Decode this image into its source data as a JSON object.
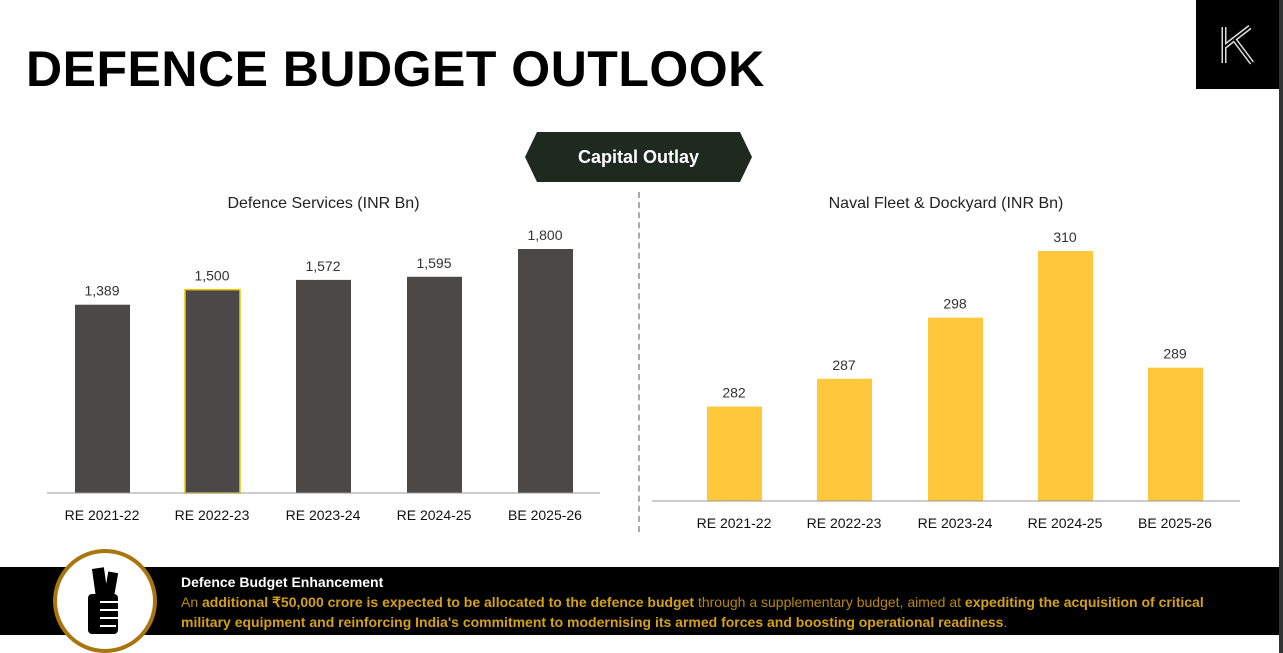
{
  "header": {
    "title": "DEFENCE BUDGET OUTLOOK",
    "section": "Capital Outlay",
    "logo_letter": "K"
  },
  "chart_data": [
    {
      "type": "bar",
      "title": "Defence Services (INR Bn)",
      "categories": [
        "RE 2021-22",
        "RE 2022-23",
        "RE 2023-24",
        "RE 2024-25",
        "BE 2025-26"
      ],
      "values": [
        1389,
        1500,
        1572,
        1595,
        1800
      ],
      "labels": [
        "1,389",
        "1,500",
        "1,572",
        "1,595",
        "1,800"
      ],
      "ylim": [
        0,
        1800
      ],
      "color": "#4a4947",
      "highlight_index": 1,
      "highlight_color": "#f5c400"
    },
    {
      "type": "bar",
      "title": "Naval Fleet & Dockyard (INR Bn)",
      "categories": [
        "RE 2021-22",
        "RE 2022-23",
        "RE 2023-24",
        "RE 2024-25",
        "BE 2025-26"
      ],
      "values": [
        282,
        287,
        298,
        310,
        289
      ],
      "labels": [
        "282",
        "287",
        "298",
        "310",
        "289"
      ],
      "ylim": [
        265,
        310
      ],
      "color": "#ffc83a"
    }
  ],
  "banner": {
    "title": "Defence Budget Enhancement",
    "t1": "An ",
    "b1": "additional ₹50,000 crore is expected to be allocated to the defence budget",
    "t2": " through a supplementary budget, aimed at ",
    "b2": "expediting the acquisition of critical military equipment and reinforcing India's commitment to modernising its armed forces and boosting operational readiness",
    "t3": "."
  }
}
